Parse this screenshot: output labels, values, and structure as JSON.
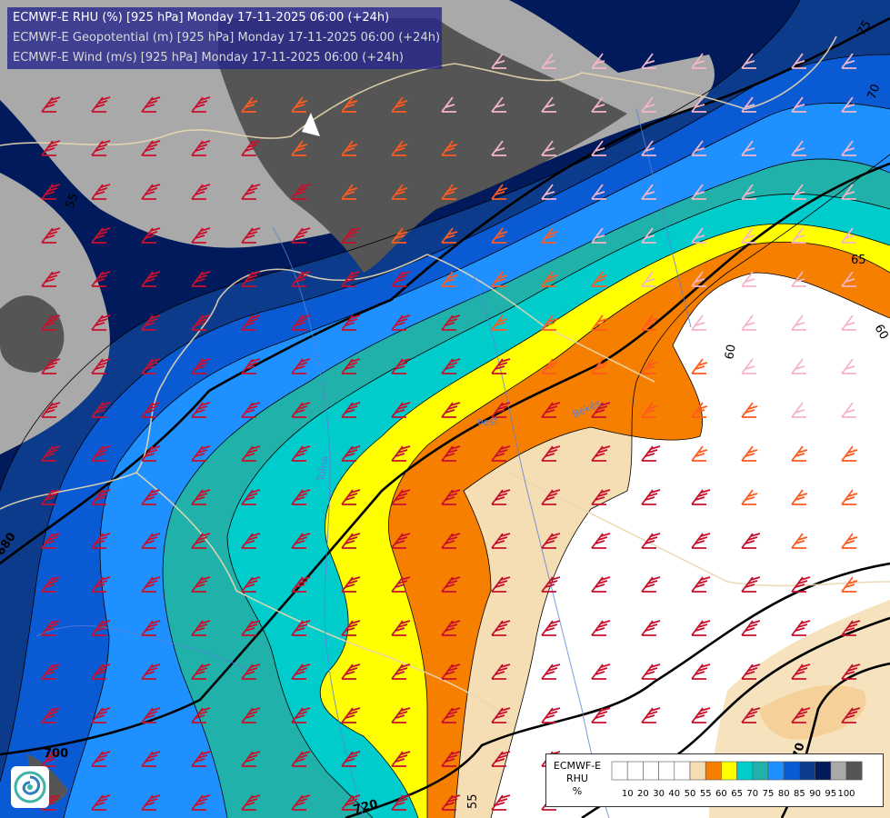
{
  "titles": [
    {
      "text": "ECMWF-E RHU (%) [925 hPa] Monday 17-11-2025 06:00 (+24h)",
      "color": "#ffffff"
    },
    {
      "text": "ECMWF-E Geopotential (m) [925 hPa] Monday 17-11-2025 06:00 (+24h)",
      "color": "#d8d8d8"
    },
    {
      "text": "ECMWF-E Wind (m/s) [925 hPa] Monday 17-11-2025 06:00 (+24h)",
      "color": "#d8d8d8"
    }
  ],
  "legend": {
    "title_lines": [
      "ECMWF-E",
      "RHU",
      "%"
    ],
    "levels": [
      "10",
      "20",
      "30",
      "40",
      "50",
      "55",
      "60",
      "65",
      "70",
      "75",
      "80",
      "85",
      "90",
      "95",
      "100"
    ],
    "colors": [
      "#ffffff",
      "#ffffff",
      "#ffffff",
      "#ffffff",
      "#ffffff",
      "#f5deb3",
      "#f77f00",
      "#ffff00",
      "#00cccc",
      "#20b2aa",
      "#1e90ff",
      "#0a5ad4",
      "#0d3b8c",
      "#001a5c",
      "#a9a9a9",
      "#555555"
    ]
  },
  "contour_labels": {
    "geopotential": [
      "680",
      "700",
      "720",
      "70"
    ],
    "rhu": [
      "75",
      "70",
      "65",
      "60",
      "60",
      "55",
      "55"
    ]
  },
  "place_labels": [
    "Békés",
    "Pest",
    "Tolna"
  ]
}
